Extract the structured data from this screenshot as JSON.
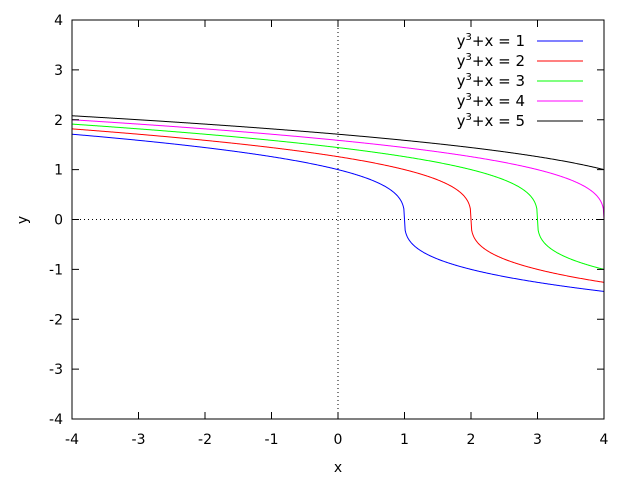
{
  "chart_data": {
    "type": "line",
    "title": "",
    "xlabel": "x",
    "ylabel": "y",
    "xlim": [
      -4,
      4
    ],
    "ylim": [
      -4,
      4
    ],
    "xticks": [
      "-4",
      "-3",
      "-2",
      "-1",
      "0",
      "1",
      "2",
      "3",
      "4"
    ],
    "yticks": [
      "-4",
      "-3",
      "-2",
      "-1",
      "0",
      "1",
      "2",
      "3",
      "4"
    ],
    "grid": false,
    "zero_axes": true,
    "legend_position": "top-right",
    "series": [
      {
        "name_base": "y",
        "name_sup": "3",
        "name_rest": "+x = 1",
        "c": 1,
        "color": "#0000ff"
      },
      {
        "name_base": "y",
        "name_sup": "3",
        "name_rest": "+x = 2",
        "c": 2,
        "color": "#ff0000"
      },
      {
        "name_base": "y",
        "name_sup": "3",
        "name_rest": "+x = 3",
        "c": 3,
        "color": "#00ff00"
      },
      {
        "name_base": "y",
        "name_sup": "3",
        "name_rest": "+x = 4",
        "c": 4,
        "color": "#ff00ff"
      },
      {
        "name_base": "y",
        "name_sup": "3",
        "name_rest": "+x = 5",
        "c": 5,
        "color": "#000000"
      }
    ]
  }
}
